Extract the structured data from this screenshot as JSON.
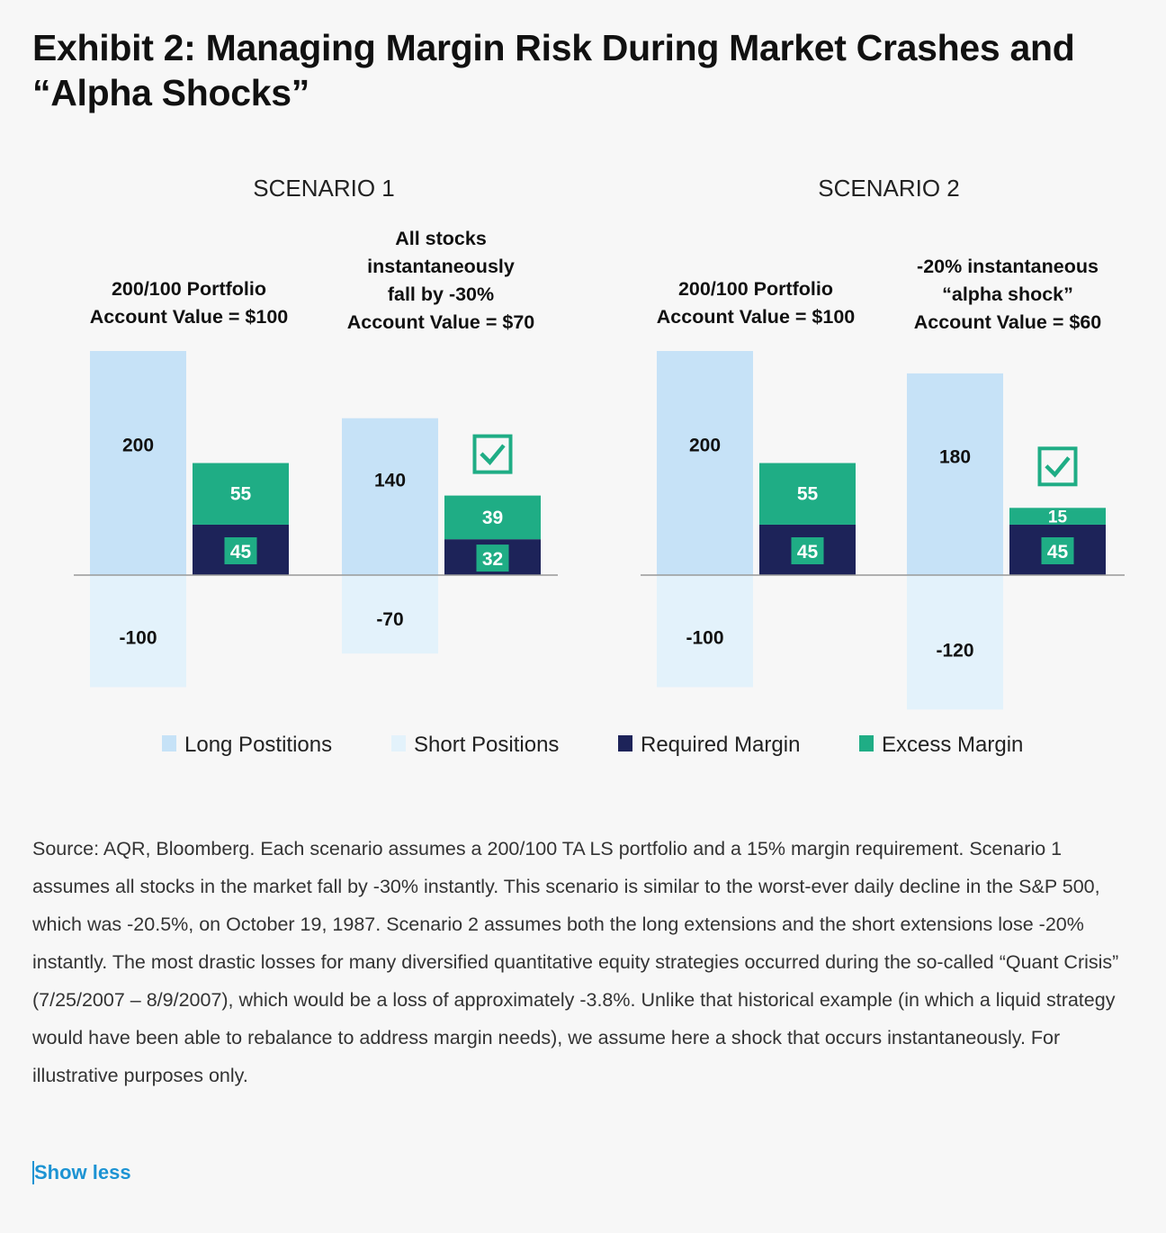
{
  "title": "Exhibit 2: Managing Margin Risk During Market Crashes and “Alpha Shocks”",
  "colors": {
    "long": "#c6e2f7",
    "short": "#e3f2fb",
    "required": "#1d2359",
    "excess": "#1fad85",
    "axis": "#999999",
    "link": "#1c93d3"
  },
  "chart_data": [
    {
      "type": "bar",
      "title": "SCENARIO 1",
      "groups": [
        {
          "label_lines": [
            "200/100 Portfolio",
            "Account Value = $100"
          ],
          "long": 200,
          "short": -100,
          "required": 45,
          "excess": 55,
          "check": false
        },
        {
          "label_lines": [
            "All stocks",
            "instantaneously",
            "fall by -30%",
            "Account Value = $70"
          ],
          "long": 140,
          "short": -70,
          "required": 32,
          "excess": 39,
          "check": true
        }
      ]
    },
    {
      "type": "bar",
      "title": "SCENARIO 2",
      "groups": [
        {
          "label_lines": [
            "200/100 Portfolio",
            "Account Value = $100"
          ],
          "long": 200,
          "short": -100,
          "required": 45,
          "excess": 55,
          "check": false
        },
        {
          "label_lines": [
            "-20% instantaneous",
            "“alpha shock”",
            "Account Value = $60"
          ],
          "long": 180,
          "short": -120,
          "required": 45,
          "excess": 15,
          "check": true
        }
      ]
    }
  ],
  "legend": [
    {
      "key": "long",
      "label": "Long Postitions"
    },
    {
      "key": "short",
      "label": "Short Positions"
    },
    {
      "key": "required",
      "label": "Required Margin"
    },
    {
      "key": "excess",
      "label": "Excess Margin"
    }
  ],
  "source_text": "Source: AQR, Bloomberg. Each scenario assumes a 200/100 TA LS portfolio and a 15% margin requirement. Scenario 1 assumes all stocks in the market fall by -30% instantly. This scenario is similar to the worst-ever daily decline in the S&P 500, which was -20.5%, on October 19, 1987. Scenario 2 assumes both the long extensions and the short extensions lose -20% instantly. The most drastic losses for many diversified quantitative equity strategies occurred during the so-called “Quant Crisis” (7/25/2007 – 8/9/2007), which would be a loss of approximately -3.8%. Unlike that historical example (in which a liquid strategy would have been able to rebalance to address margin needs), we assume here a shock that occurs instantaneously. For illustrative purposes only.",
  "show_less": "Show less"
}
